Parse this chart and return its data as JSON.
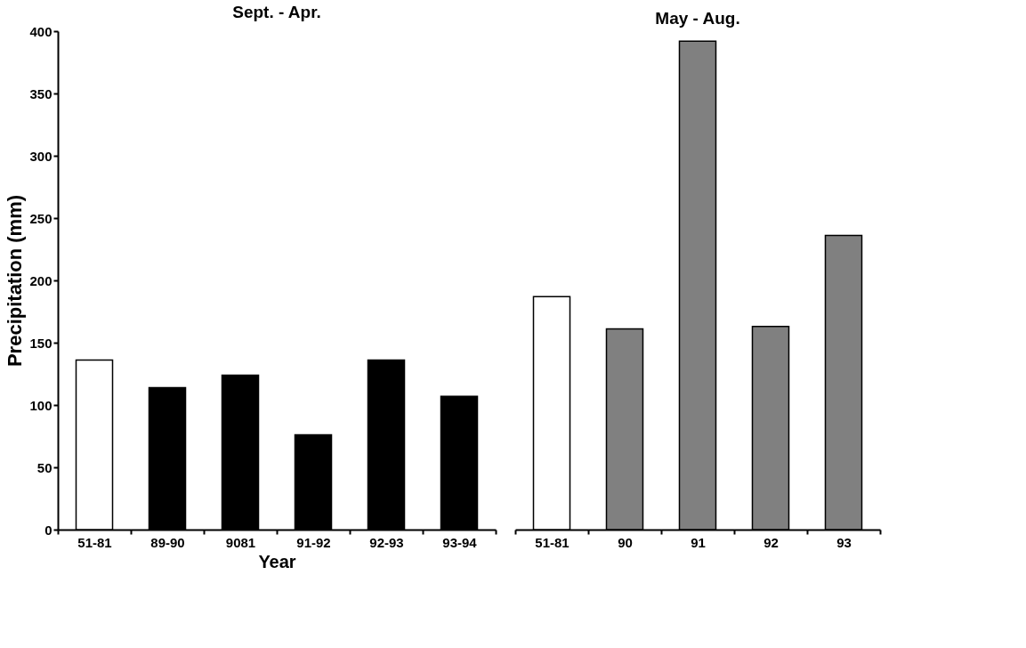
{
  "chart_data": [
    {
      "type": "bar",
      "title": "Sept. - Apr.",
      "xlabel": "Year",
      "ylabel": "Precipitation (mm)",
      "categories": [
        "51-81",
        "89-90",
        "9081",
        "91-92",
        "92-93",
        "93-94"
      ],
      "values": [
        136,
        114,
        124,
        76,
        136,
        107
      ],
      "colors": [
        "#ffffff",
        "#000000",
        "#000000",
        "#000000",
        "#000000",
        "#000000"
      ],
      "ylim": [
        0,
        400
      ],
      "yticks": [
        0,
        50,
        100,
        150,
        200,
        250,
        300,
        350,
        400
      ],
      "grid": false
    },
    {
      "type": "bar",
      "title": "May - Aug.",
      "categories": [
        "51-81",
        "90",
        "91",
        "92",
        "93"
      ],
      "values": [
        187,
        161,
        392,
        163,
        236
      ],
      "colors": [
        "#ffffff",
        "#808080",
        "#808080",
        "#808080",
        "#808080"
      ],
      "ylim": [
        0,
        400
      ],
      "yticks": [
        0,
        50,
        100,
        150,
        200,
        250,
        300,
        350,
        400
      ],
      "grid": false,
      "tick_labels": "x"
    }
  ]
}
